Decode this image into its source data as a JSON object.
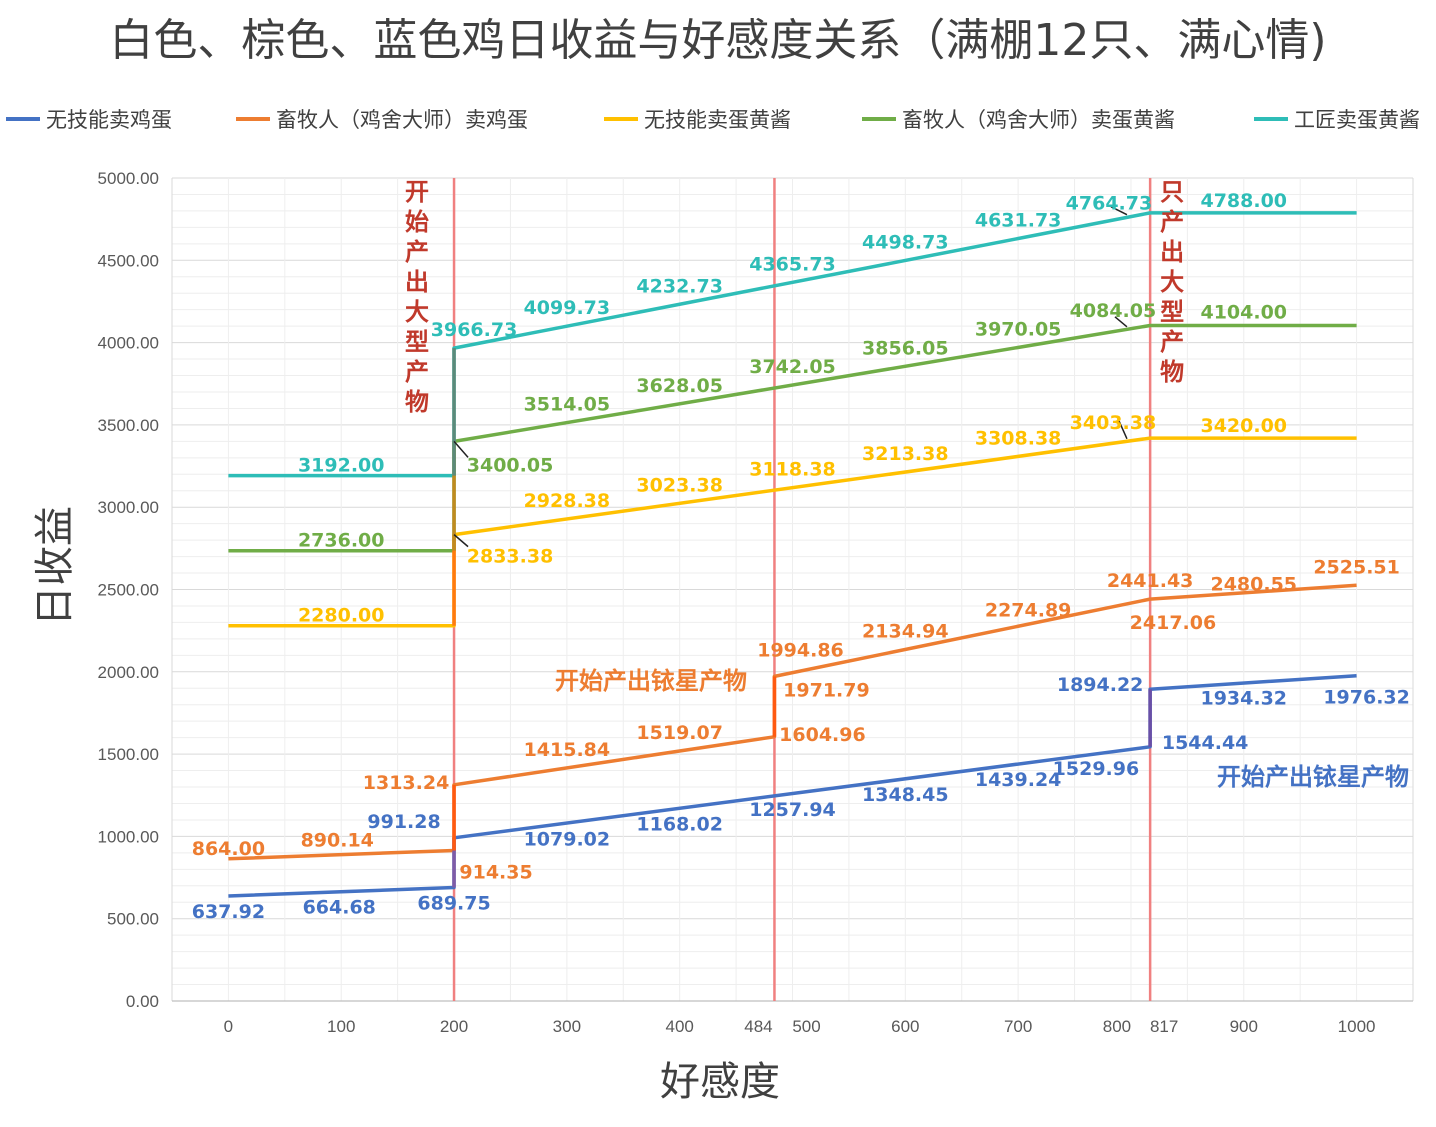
{
  "chart_data": {
    "type": "line",
    "title": "白色、棕色、蓝色鸡日收益与好感度关系（满棚12只、满心情)",
    "xlabel": "好感度",
    "ylabel": "日收益",
    "xlim": [
      -50,
      1050
    ],
    "ylim": [
      0,
      5000
    ],
    "x_ticks": [
      "0",
      "100",
      "200",
      "300",
      "400",
      "484",
      "500",
      "600",
      "700",
      "800",
      "817",
      "900",
      "1000"
    ],
    "y_ticks": [
      "0.00",
      "500.00",
      "1000.00",
      "1500.00",
      "2000.00",
      "2500.00",
      "3000.00",
      "3500.00",
      "4000.00",
      "4500.00",
      "5000.00"
    ],
    "grid": true,
    "legend_position": "top",
    "series": [
      {
        "name": "无技能卖鸡蛋",
        "color": "#4472C4",
        "points": [
          [
            0,
            637.92
          ],
          [
            200,
            689.75
          ],
          [
            200,
            991.28
          ],
          [
            817,
            1544.44
          ],
          [
            817,
            1894.22
          ],
          [
            1000,
            1976.32
          ]
        ],
        "labels": [
          {
            "x": 0,
            "y": 637.92,
            "text": "637.92"
          },
          {
            "x": 100,
            "y": 664.68,
            "text": "664.68"
          },
          {
            "x": 200,
            "y": 689.75,
            "text": "689.75"
          },
          {
            "x": 200,
            "y": 991.28,
            "text": "991.28"
          },
          {
            "x": 300,
            "y": 1079.02,
            "text": "1079.02"
          },
          {
            "x": 400,
            "y": 1168.02,
            "text": "1168.02"
          },
          {
            "x": 500,
            "y": 1257.94,
            "text": "1257.94"
          },
          {
            "x": 600,
            "y": 1348.45,
            "text": "1348.45"
          },
          {
            "x": 700,
            "y": 1439.24,
            "text": "1439.24"
          },
          {
            "x": 800,
            "y": 1529.96,
            "text": "1529.96"
          },
          {
            "x": 817,
            "y": 1544.44,
            "text": "1544.44"
          },
          {
            "x": 817,
            "y": 1894.22,
            "text": "1894.22"
          },
          {
            "x": 900,
            "y": 1934.32,
            "text": "1934.32"
          },
          {
            "x": 1000,
            "y": 1976.32,
            "text": "1976.32"
          }
        ]
      },
      {
        "name": "畜牧人（鸡舍大师）卖鸡蛋",
        "color": "#ED7D31",
        "points": [
          [
            0,
            864.0
          ],
          [
            200,
            914.35
          ],
          [
            200,
            1313.24
          ],
          [
            484,
            1604.96
          ],
          [
            484,
            1971.79
          ],
          [
            817,
            2441.43
          ],
          [
            1000,
            2525.51
          ]
        ],
        "labels": [
          {
            "x": 0,
            "y": 864.0,
            "text": "864.00"
          },
          {
            "x": 100,
            "y": 890.14,
            "text": "890.14"
          },
          {
            "x": 200,
            "y": 914.35,
            "text": "914.35"
          },
          {
            "x": 200,
            "y": 1313.24,
            "text": "1313.24"
          },
          {
            "x": 300,
            "y": 1415.84,
            "text": "1415.84"
          },
          {
            "x": 400,
            "y": 1519.07,
            "text": "1519.07"
          },
          {
            "x": 484,
            "y": 1604.96,
            "text": "1604.96"
          },
          {
            "x": 484,
            "y": 1971.79,
            "text": "1971.79"
          },
          {
            "x": 500,
            "y": 1994.86,
            "text": "1994.86"
          },
          {
            "x": 600,
            "y": 2134.94,
            "text": "2134.94"
          },
          {
            "x": 700,
            "y": 2274.89,
            "text": "2274.89"
          },
          {
            "x": 800,
            "y": 2417.06,
            "text": "2417.06"
          },
          {
            "x": 817,
            "y": 2441.43,
            "text": "2441.43"
          },
          {
            "x": 900,
            "y": 2480.55,
            "text": "2480.55"
          },
          {
            "x": 1000,
            "y": 2525.51,
            "text": "2525.51"
          }
        ]
      },
      {
        "name": "无技能卖蛋黄酱",
        "color": "#FFC000",
        "points": [
          [
            0,
            2280.0
          ],
          [
            200,
            2280.0
          ],
          [
            200,
            2833.38
          ],
          [
            817,
            3420.0
          ],
          [
            1000,
            3420.0
          ]
        ],
        "labels": [
          {
            "x": 100,
            "y": 2280.0,
            "text": "2280.00"
          },
          {
            "x": 200,
            "y": 2833.38,
            "text": "2833.38"
          },
          {
            "x": 300,
            "y": 2928.38,
            "text": "2928.38"
          },
          {
            "x": 400,
            "y": 3023.38,
            "text": "3023.38"
          },
          {
            "x": 500,
            "y": 3118.38,
            "text": "3118.38"
          },
          {
            "x": 600,
            "y": 3213.38,
            "text": "3213.38"
          },
          {
            "x": 700,
            "y": 3308.38,
            "text": "3308.38"
          },
          {
            "x": 800,
            "y": 3403.38,
            "text": "3403.38"
          },
          {
            "x": 900,
            "y": 3420.0,
            "text": "3420.00"
          }
        ]
      },
      {
        "name": "畜牧人（鸡舍大师）卖蛋黄酱",
        "color": "#70AD47",
        "points": [
          [
            0,
            2736.0
          ],
          [
            200,
            2736.0
          ],
          [
            200,
            3400.05
          ],
          [
            817,
            4104.0
          ],
          [
            1000,
            4104.0
          ]
        ],
        "labels": [
          {
            "x": 100,
            "y": 2736.0,
            "text": "2736.00"
          },
          {
            "x": 200,
            "y": 3400.05,
            "text": "3400.05"
          },
          {
            "x": 300,
            "y": 3514.05,
            "text": "3514.05"
          },
          {
            "x": 400,
            "y": 3628.05,
            "text": "3628.05"
          },
          {
            "x": 500,
            "y": 3742.05,
            "text": "3742.05"
          },
          {
            "x": 600,
            "y": 3856.05,
            "text": "3856.05"
          },
          {
            "x": 700,
            "y": 3970.05,
            "text": "3970.05"
          },
          {
            "x": 800,
            "y": 4084.05,
            "text": "4084.05"
          },
          {
            "x": 900,
            "y": 4104.0,
            "text": "4104.00"
          }
        ]
      },
      {
        "name": "工匠卖蛋黄酱",
        "color": "#2EBDB7",
        "points": [
          [
            0,
            3192.0
          ],
          [
            200,
            3192.0
          ],
          [
            200,
            3966.73
          ],
          [
            817,
            4788.0
          ],
          [
            1000,
            4788.0
          ]
        ],
        "labels": [
          {
            "x": 100,
            "y": 3192.0,
            "text": "3192.00"
          },
          {
            "x": 200,
            "y": 3966.73,
            "text": "3966.73"
          },
          {
            "x": 300,
            "y": 4099.73,
            "text": "4099.73"
          },
          {
            "x": 400,
            "y": 4232.73,
            "text": "4232.73"
          },
          {
            "x": 500,
            "y": 4365.73,
            "text": "4365.73"
          },
          {
            "x": 600,
            "y": 4498.73,
            "text": "4498.73"
          },
          {
            "x": 700,
            "y": 4631.73,
            "text": "4631.73"
          },
          {
            "x": 800,
            "y": 4764.73,
            "text": "4764.73"
          },
          {
            "x": 900,
            "y": 4788.0,
            "text": "4788.00"
          }
        ]
      }
    ],
    "reference_lines": [
      {
        "x": 200,
        "color": "#F08080"
      },
      {
        "x": 484,
        "color": "#F08080"
      },
      {
        "x": 817,
        "color": "#F08080"
      }
    ],
    "annotations": [
      {
        "text": "开始产出大型产物",
        "orientation": "vertical",
        "color": "#C0392B"
      },
      {
        "text": "只产出大型产物",
        "orientation": "vertical",
        "color": "#C0392B"
      },
      {
        "text": "开始产出铱星产物",
        "orientation": "horizontal",
        "color": "#ED7D31"
      },
      {
        "text": "开始产出铱星产物",
        "orientation": "horizontal",
        "color": "#4472C4"
      }
    ]
  }
}
